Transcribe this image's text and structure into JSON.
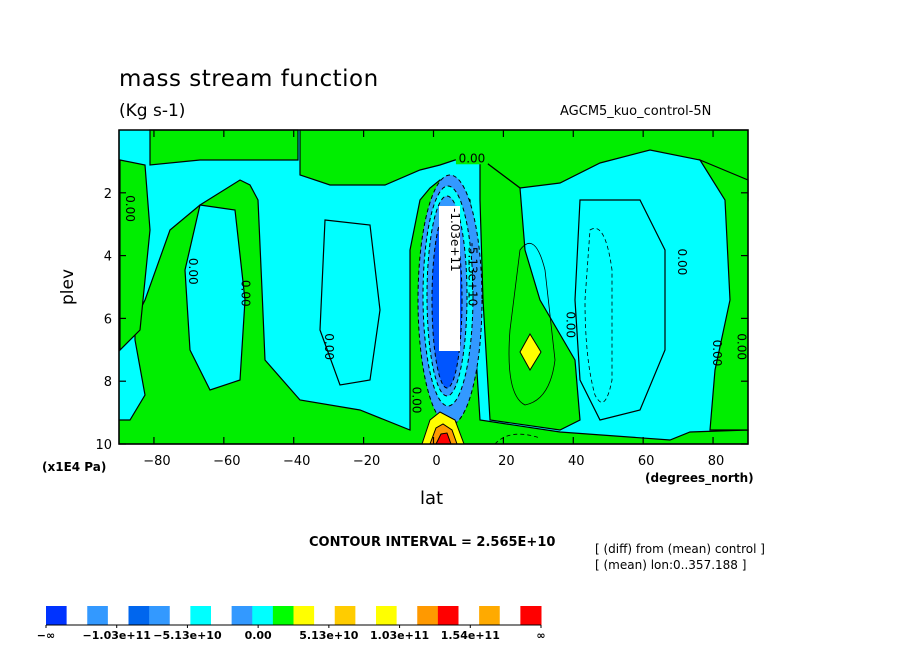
{
  "chart_data": {
    "type": "contour",
    "title": "mass stream function",
    "subtitle": "(Kg s-1)",
    "model_label": "AGCM5_kuo_control-5N",
    "xlabel": "lat",
    "xunit": "(degrees_north)",
    "ylabel": "plev",
    "yunit": "(x1E4 Pa)",
    "xlim": [
      -90,
      90
    ],
    "ylim": [
      10,
      0
    ],
    "xticks": [
      -80,
      -60,
      -40,
      -20,
      0,
      20,
      40,
      60,
      80
    ],
    "yticks": [
      2,
      4,
      6,
      8,
      10
    ],
    "contour_interval": "CONTOUR INTERVAL = 2.565E+10",
    "contour_labels": [
      {
        "text": "0.00",
        "lat": 11,
        "plev": 0.9
      },
      {
        "text": "0.00",
        "lat": -88,
        "plev": 2.5
      },
      {
        "text": "0.00",
        "lat": -70,
        "plev": 4.5
      },
      {
        "text": "0.00",
        "lat": -55,
        "plev": 5.2
      },
      {
        "text": "0.00",
        "lat": -31,
        "plev": 6.9
      },
      {
        "text": "0.00",
        "lat": -6,
        "plev": 8.6
      },
      {
        "text": "0.00",
        "lat": 38,
        "plev": 6.2
      },
      {
        "text": "0.00",
        "lat": 70,
        "plev": 4.2
      },
      {
        "text": "0.00",
        "lat": 80,
        "plev": 7.1
      },
      {
        "text": "0.00",
        "lat": 87,
        "plev": 6.9
      },
      {
        "text": "-1.03e+11",
        "lat": 5,
        "plev": 3.5
      },
      {
        "text": "-5.13e+10",
        "lat": 10,
        "plev": 4.6
      }
    ],
    "notes": [
      "[ (diff) from (mean) control ]",
      "[ (mean) lon:0..357.188 ]"
    ],
    "colorbar": {
      "labels": [
        "-∞",
        "-1.03e+11",
        "-5.13e+10",
        "0.00",
        "5.13e+10",
        "1.03e+11",
        "1.54e+11",
        "∞"
      ],
      "colors": [
        "#0033ff",
        "#ffffff",
        "#3399ff",
        "#ffffff",
        "#0066ee",
        "#3399ff",
        "#ffffff",
        "#00ffff",
        "#ffffff",
        "#3399ff",
        "#00ffff",
        "#00ff00",
        "#ffff00",
        "#ffffff",
        "#ffcc00",
        "#ffffff",
        "#ffff00",
        "#ffffff",
        "#ff9900",
        "#ff0000",
        "#ffffff",
        "#ffaa00",
        "#ffffff",
        "#ff0000"
      ]
    }
  },
  "colors": {
    "cyan": "#00ffff",
    "green": "#00ee00",
    "blue_dark": "#0055ff",
    "blue_mid": "#3399ff",
    "yellow": "#ffff00",
    "orange": "#ff9900",
    "red": "#ff0000"
  }
}
